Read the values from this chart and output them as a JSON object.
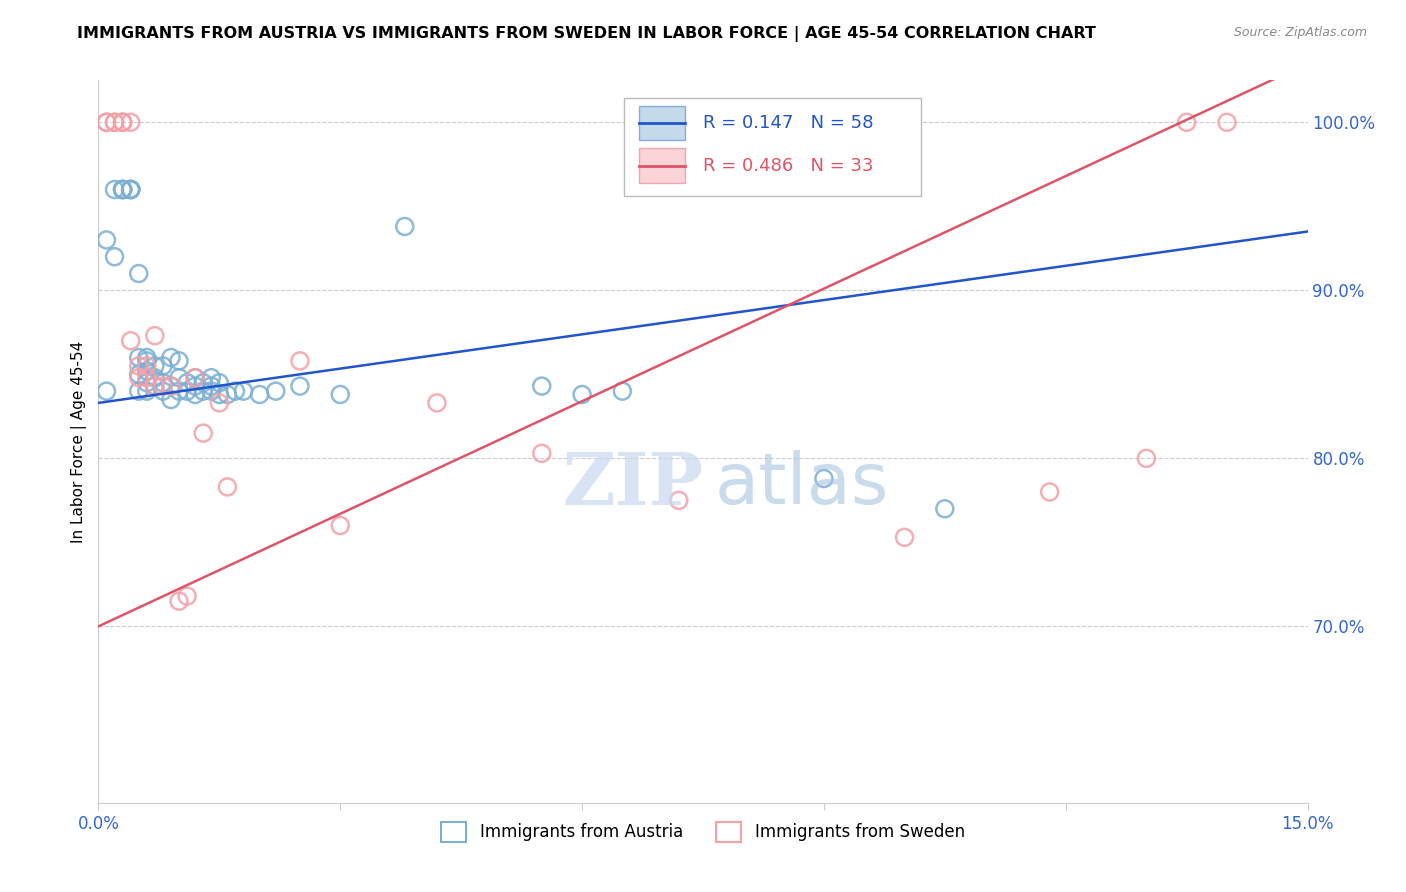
{
  "title": "IMMIGRANTS FROM AUSTRIA VS IMMIGRANTS FROM SWEDEN IN LABOR FORCE | AGE 45-54 CORRELATION CHART",
  "source": "Source: ZipAtlas.com",
  "ylabel": "In Labor Force | Age 45-54",
  "xlim": [
    0.0,
    0.15
  ],
  "ylim": [
    0.595,
    1.025
  ],
  "x_ticks": [
    0.0,
    0.03,
    0.06,
    0.09,
    0.12,
    0.15
  ],
  "x_tick_labels": [
    "0.0%",
    "",
    "",
    "",
    "",
    "15.0%"
  ],
  "y_tick_labels_right": [
    "70.0%",
    "80.0%",
    "90.0%",
    "100.0%"
  ],
  "y_ticks_right": [
    0.7,
    0.8,
    0.9,
    1.0
  ],
  "austria_color": "#7bafd4",
  "sweden_color": "#f4a0a8",
  "austria_line_color": "#2255cc",
  "sweden_line_color": "#dd5566",
  "austria_R": 0.147,
  "austria_N": 58,
  "sweden_R": 0.486,
  "sweden_N": 33,
  "austria_x": [
    0.001,
    0.001,
    0.002,
    0.002,
    0.003,
    0.003,
    0.003,
    0.003,
    0.004,
    0.004,
    0.004,
    0.004,
    0.005,
    0.005,
    0.005,
    0.005,
    0.006,
    0.006,
    0.006,
    0.006,
    0.006,
    0.007,
    0.007,
    0.007,
    0.008,
    0.008,
    0.008,
    0.009,
    0.009,
    0.009,
    0.01,
    0.01,
    0.01,
    0.011,
    0.011,
    0.012,
    0.012,
    0.012,
    0.013,
    0.013,
    0.014,
    0.014,
    0.014,
    0.015,
    0.015,
    0.016,
    0.017,
    0.018,
    0.02,
    0.022,
    0.025,
    0.03,
    0.038,
    0.055,
    0.06,
    0.065,
    0.09,
    0.105
  ],
  "austria_y": [
    0.84,
    0.93,
    0.92,
    0.96,
    0.96,
    0.96,
    0.96,
    0.96,
    0.96,
    0.96,
    0.96,
    0.96,
    0.91,
    0.84,
    0.85,
    0.86,
    0.84,
    0.845,
    0.852,
    0.858,
    0.86,
    0.843,
    0.848,
    0.855,
    0.84,
    0.845,
    0.855,
    0.835,
    0.843,
    0.86,
    0.84,
    0.848,
    0.858,
    0.84,
    0.845,
    0.838,
    0.843,
    0.848,
    0.84,
    0.845,
    0.84,
    0.843,
    0.848,
    0.838,
    0.845,
    0.838,
    0.84,
    0.84,
    0.838,
    0.84,
    0.843,
    0.838,
    0.938,
    0.843,
    0.838,
    0.84,
    0.788,
    0.77
  ],
  "sweden_x": [
    0.001,
    0.001,
    0.002,
    0.002,
    0.003,
    0.003,
    0.003,
    0.004,
    0.004,
    0.005,
    0.005,
    0.006,
    0.006,
    0.007,
    0.007,
    0.008,
    0.009,
    0.01,
    0.011,
    0.012,
    0.013,
    0.015,
    0.016,
    0.025,
    0.03,
    0.042,
    0.055,
    0.072,
    0.1,
    0.118,
    0.13,
    0.135,
    0.14
  ],
  "sweden_y": [
    1.0,
    1.0,
    1.0,
    1.0,
    1.0,
    1.0,
    1.0,
    1.0,
    0.87,
    0.848,
    0.855,
    0.848,
    0.855,
    0.843,
    0.873,
    0.843,
    0.843,
    0.715,
    0.718,
    0.848,
    0.815,
    0.833,
    0.783,
    0.858,
    0.76,
    0.833,
    0.803,
    0.775,
    0.753,
    0.78,
    0.8,
    1.0,
    1.0
  ]
}
